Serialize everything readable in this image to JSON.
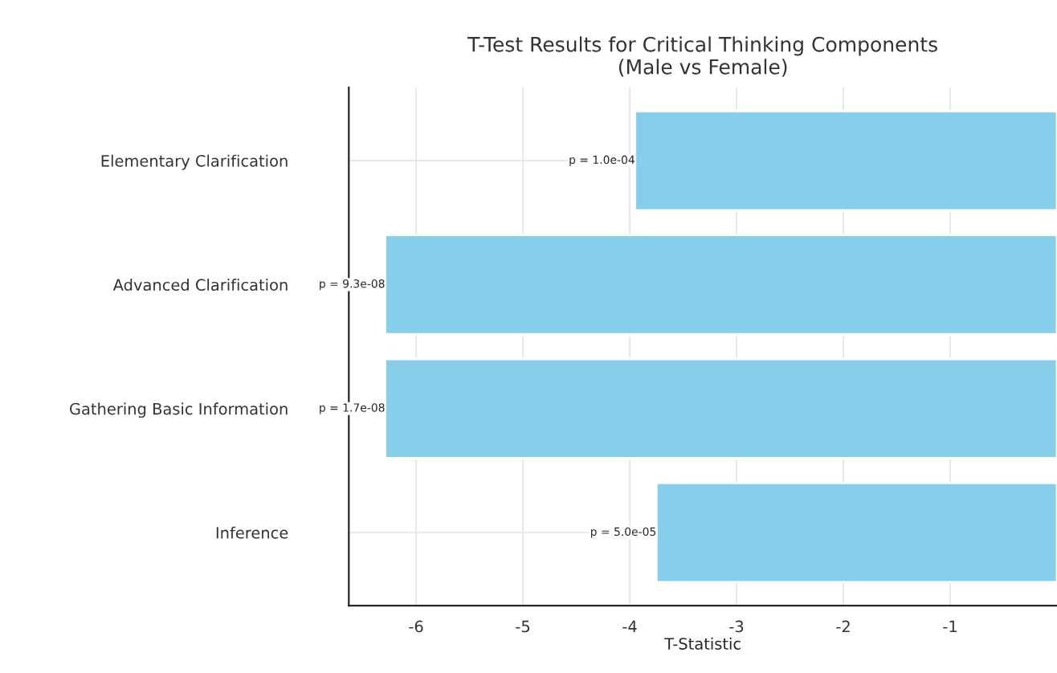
{
  "chart_data": {
    "type": "bar",
    "orientation": "horizontal",
    "title": "T-Test Results for Critical Thinking Components\n(Male vs Female)",
    "xlabel": "T-Statistic",
    "categories": [
      "Elementary Clarification",
      "Advanced Clarification",
      "Gathering Basic Information",
      "Inference"
    ],
    "values": [
      -3.95,
      -6.29,
      -6.29,
      -3.75
    ],
    "value_labels": [
      "p = 1.0e-04",
      "p = 9.3e-08",
      "p = 1.7e-08",
      "p = 5.0e-05"
    ],
    "color": "#87ceeb",
    "xlim": [
      -6.63,
      0
    ],
    "xticks": [
      -6,
      -5,
      -4,
      -3,
      -2,
      -1
    ],
    "grid": true
  }
}
